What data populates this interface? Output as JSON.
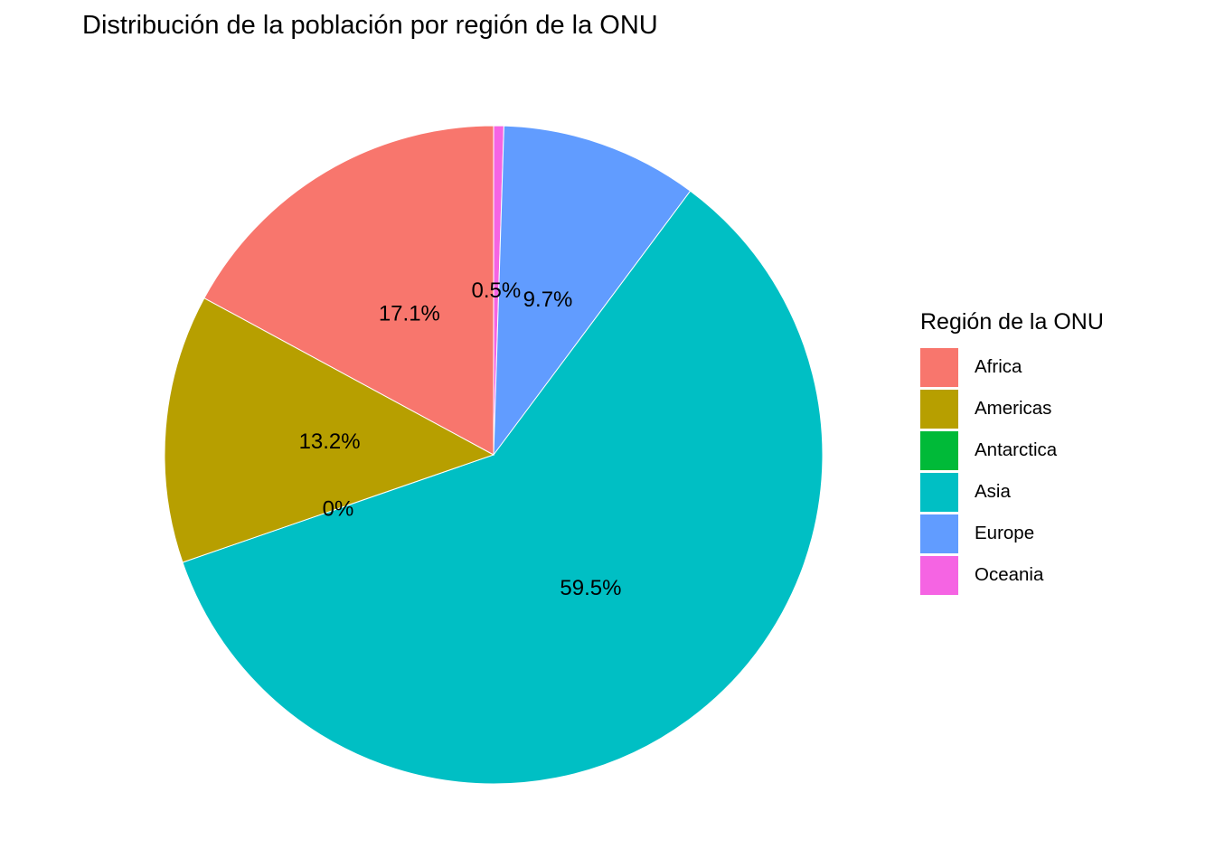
{
  "chart_data": {
    "type": "pie",
    "title": "Distribución de la población por región de la ONU",
    "legend_title": "Región de la ONU",
    "legend_position": "right",
    "categories": [
      "Africa",
      "Americas",
      "Antarctica",
      "Asia",
      "Europe",
      "Oceania"
    ],
    "values": [
      17.1,
      13.2,
      0,
      59.5,
      9.7,
      0.5
    ],
    "labels": [
      "17.1%",
      "13.2%",
      "0%",
      "59.5%",
      "9.7%",
      "0.5%"
    ],
    "colors": [
      "#F8766D",
      "#B79F00",
      "#00BA38",
      "#00BFC4",
      "#619CFF",
      "#F564E3"
    ],
    "xlabel": "",
    "ylabel": ""
  },
  "title": "Distribución de la población por región de la ONU",
  "legend": {
    "title": "Región de la ONU",
    "items": [
      {
        "label": "Africa",
        "color": "#F8766D"
      },
      {
        "label": "Americas",
        "color": "#B79F00"
      },
      {
        "label": "Antarctica",
        "color": "#00BA38"
      },
      {
        "label": "Asia",
        "color": "#00BFC4"
      },
      {
        "label": "Europe",
        "color": "#619CFF"
      },
      {
        "label": "Oceania",
        "color": "#F564E3"
      }
    ]
  }
}
